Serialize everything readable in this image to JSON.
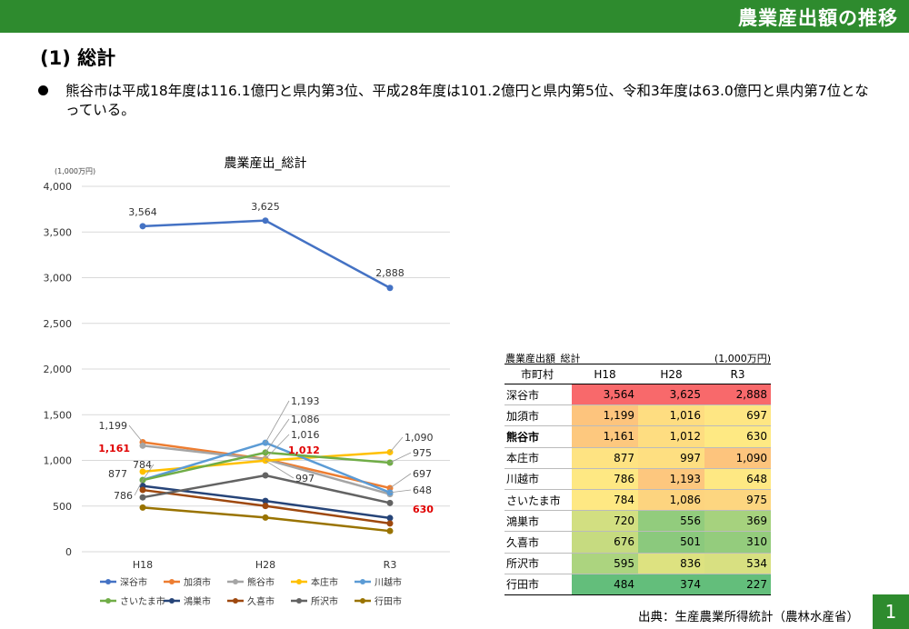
{
  "header": {
    "title": "農業産出額の推移"
  },
  "section": {
    "title": "(1) 総計"
  },
  "bullet": {
    "text": "熊谷市は平成18年度は116.1億円と県内第3位、平成28年度は101.2億円と県内第5位、令和3年度は63.0億円と県内第7位となっている。"
  },
  "chart_data": {
    "type": "line",
    "title": "農業産出_総計",
    "unit_label": "(1,000万円)",
    "categories": [
      "H18",
      "H28",
      "R3"
    ],
    "ylim": [
      0,
      4000
    ],
    "yticks": [
      0,
      500,
      1000,
      1500,
      2000,
      2500,
      3000,
      3500,
      4000
    ],
    "ytick_labels": [
      "0",
      "500",
      "1,000",
      "1,500",
      "2,000",
      "2,500",
      "3,000",
      "3,500",
      "4,000"
    ],
    "grid": true,
    "legend_position": "bottom",
    "series": [
      {
        "name": "深谷市",
        "color": "#4472c4",
        "values": [
          3564,
          3625,
          2888
        ],
        "labels": [
          "3,564",
          "3,625",
          "2,888"
        ]
      },
      {
        "name": "加須市",
        "color": "#ed7d31",
        "values": [
          1199,
          1016,
          697
        ],
        "labels": [
          "1,199",
          "1,016",
          "697"
        ]
      },
      {
        "name": "熊谷市",
        "color": "#a5a5a5",
        "values": [
          1161,
          1012,
          630
        ],
        "labels": [
          "1,161",
          "1,012",
          "630"
        ],
        "highlight_color": "#e00000"
      },
      {
        "name": "本庄市",
        "color": "#ffc000",
        "values": [
          877,
          997,
          1090
        ],
        "labels": [
          "877",
          "997",
          "1,090"
        ]
      },
      {
        "name": "川越市",
        "color": "#5b9bd5",
        "values": [
          786,
          1193,
          648
        ],
        "labels": [
          "786",
          "1,193",
          "648"
        ]
      },
      {
        "name": "さいたま市",
        "color": "#70ad47",
        "values": [
          784,
          1086,
          975
        ],
        "labels": [
          "784",
          "1,086",
          "975"
        ]
      },
      {
        "name": "鴻巣市",
        "color": "#264478",
        "values": [
          720,
          556,
          369
        ]
      },
      {
        "name": "久喜市",
        "color": "#9e480e",
        "values": [
          676,
          501,
          310
        ]
      },
      {
        "name": "所沢市",
        "color": "#636363",
        "values": [
          595,
          836,
          534
        ]
      },
      {
        "name": "行田市",
        "color": "#997300",
        "values": [
          484,
          374,
          227
        ]
      }
    ]
  },
  "table": {
    "title": "農業産出額_総計",
    "unit": "(1,000万円)",
    "columns": [
      "市町村",
      "H18",
      "H28",
      "R3"
    ],
    "rows": [
      {
        "name": "深谷市",
        "h18": "3,564",
        "h28": "3,625",
        "r3": "2,888",
        "colors": [
          "#f8696b",
          "#f8696b",
          "#f8696b"
        ]
      },
      {
        "name": "加須市",
        "h18": "1,199",
        "h28": "1,016",
        "r3": "697",
        "colors": [
          "#fdc47d",
          "#fedd81",
          "#fee683"
        ]
      },
      {
        "name": "熊谷市",
        "h18": "1,161",
        "h28": "1,012",
        "r3": "630",
        "bold": true,
        "colors": [
          "#fdc87e",
          "#fedd81",
          "#fee983"
        ]
      },
      {
        "name": "本庄市",
        "h18": "877",
        "h28": "997",
        "r3": "1,090",
        "colors": [
          "#fee382",
          "#fedf81",
          "#fdc47d"
        ]
      },
      {
        "name": "川越市",
        "h18": "786",
        "h28": "1,193",
        "r3": "648",
        "colors": [
          "#fee883",
          "#fdc77e",
          "#fee883"
        ]
      },
      {
        "name": "さいたま市",
        "h18": "784",
        "h28": "1,086",
        "r3": "975",
        "colors": [
          "#fee883",
          "#fdd47f",
          "#fdd680"
        ]
      },
      {
        "name": "鴻巣市",
        "h18": "720",
        "h28": "556",
        "r3": "369",
        "colors": [
          "#d2df81",
          "#92cc7d",
          "#a6d27e"
        ]
      },
      {
        "name": "久喜市",
        "h18": "676",
        "h28": "501",
        "r3": "310",
        "colors": [
          "#c6db80",
          "#8bc97d",
          "#94cc7d"
        ]
      },
      {
        "name": "所沢市",
        "h18": "595",
        "h28": "836",
        "r3": "534",
        "colors": [
          "#acd47f",
          "#dde280",
          "#d8e081"
        ]
      },
      {
        "name": "行田市",
        "h18": "484",
        "h28": "374",
        "r3": "227",
        "colors": [
          "#63be7b",
          "#63be7b",
          "#63be7b"
        ]
      }
    ]
  },
  "source": "出典：生産農業所得統計（農林水産省）",
  "page_number": "1"
}
